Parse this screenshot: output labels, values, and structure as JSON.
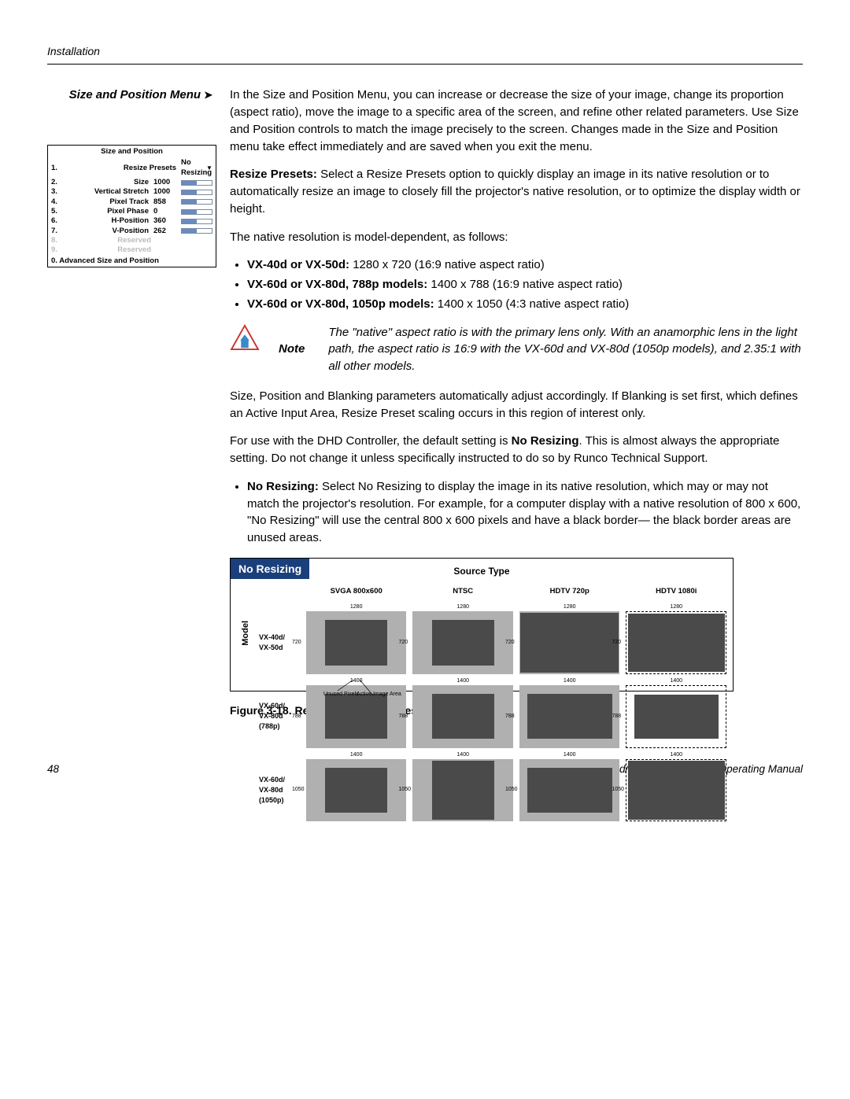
{
  "header": {
    "section": "Installation"
  },
  "sidebar": {
    "title": "Size and Position Menu",
    "menu_title": "Size and Position",
    "items": [
      {
        "n": "1.",
        "label": "Resize Presets",
        "value": "No Resizing",
        "dropdown": true
      },
      {
        "n": "2.",
        "label": "Size",
        "value": "1000",
        "slider": true
      },
      {
        "n": "3.",
        "label": "Vertical Stretch",
        "value": "1000",
        "slider": true
      },
      {
        "n": "4.",
        "label": "Pixel Track",
        "value": "858",
        "slider": true
      },
      {
        "n": "5.",
        "label": "Pixel Phase",
        "value": "0",
        "slider": true
      },
      {
        "n": "6.",
        "label": "H-Position",
        "value": "360",
        "slider": true
      },
      {
        "n": "7.",
        "label": "V-Position",
        "value": "262",
        "slider": true
      },
      {
        "n": "8.",
        "label": "Reserved",
        "reserved": true
      },
      {
        "n": "9.",
        "label": "Reserved",
        "reserved": true
      }
    ],
    "menu_footer": "0. Advanced Size and Position"
  },
  "body": {
    "p1": "In the Size and Position Menu, you can increase or decrease the size of your image, change its proportion (aspect ratio), move the image to a specific area of the screen, and refine other related parameters. Use Size and Position controls to match the image precisely to the screen. Changes made in the Size and Position menu take effect immediately and are saved when you exit the menu.",
    "p2_b": "Resize Presets: ",
    "p2": "Select a Resize Presets option to quickly display an image in its native resolution or to automatically resize an image to closely fill the projector's native resolution, or to optimize the display width or height.",
    "p3": "The native resolution is model-dependent, as follows:",
    "bul1_b": "VX-40d or VX-50d: ",
    "bul1": "1280 x 720 (16:9 native aspect ratio)",
    "bul2_b": "VX-60d or VX-80d, 788p models: ",
    "bul2": "1400 x 788 (16:9 native aspect ratio)",
    "bul3_b": "VX-60d or VX-80d, 1050p models: ",
    "bul3": "1400 x 1050 (4:3 native aspect ratio)",
    "note_label": "Note",
    "note": "The \"native\" aspect ratio is with the primary lens only. With an anamorphic lens in the light path, the aspect ratio is 16:9 with the VX-60d and VX-80d (1050p models), and 2.35:1 with all other models.",
    "p4": "Size, Position and Blanking parameters automatically adjust accordingly. If Blanking is set first, which defines an Active Input Area, Resize Preset scaling occurs in this region of interest only.",
    "p5a": "For use with the DHD Controller, the default setting is ",
    "p5b": "No Resizing",
    "p5c": ". This is almost always the appropriate setting. Do not change it unless specifically instructed to do so by Runco Technical Support.",
    "bul4_b": "No Resizing: ",
    "bul4": "Select No Resizing to display the image in its native resolution, which may or may not match the projector's resolution. For example, for a computer display with a native resolution of 800 x 600, \"No Resizing\" will use the central 800 x 600 pixels and have a black border— the black border areas are unused areas."
  },
  "figure": {
    "tab": "No Resizing",
    "source_title": "Source Type",
    "model_title": "Model",
    "col_hdrs": [
      "SVGA 800x600",
      "NTSC",
      "HDTV 720p",
      "HDTV 1080i"
    ],
    "row_labels": [
      "VX-40d/\nVX-50d",
      "VX-60d/\nVX-80d\n(788p)",
      "VX-60d/\nVX-80d\n(1050p)"
    ],
    "row_widths": [
      "1280",
      "1400",
      "1400"
    ],
    "row_heights": [
      "720",
      "788",
      "1050"
    ],
    "legend_active": "Active Image Area",
    "legend_unused": "Unused Pixels",
    "caption": "Figure 3-18. Resize Presets: No Resizing",
    "colors": {
      "tab_bg": "#1a3f7a",
      "panel_bg": "#b0b0b0",
      "inner_bg": "#4a4a4a"
    }
  },
  "footer": {
    "page": "48",
    "title": "Runco VX-40d/-50d/-60d/-80d Owner's Operating Manual"
  }
}
